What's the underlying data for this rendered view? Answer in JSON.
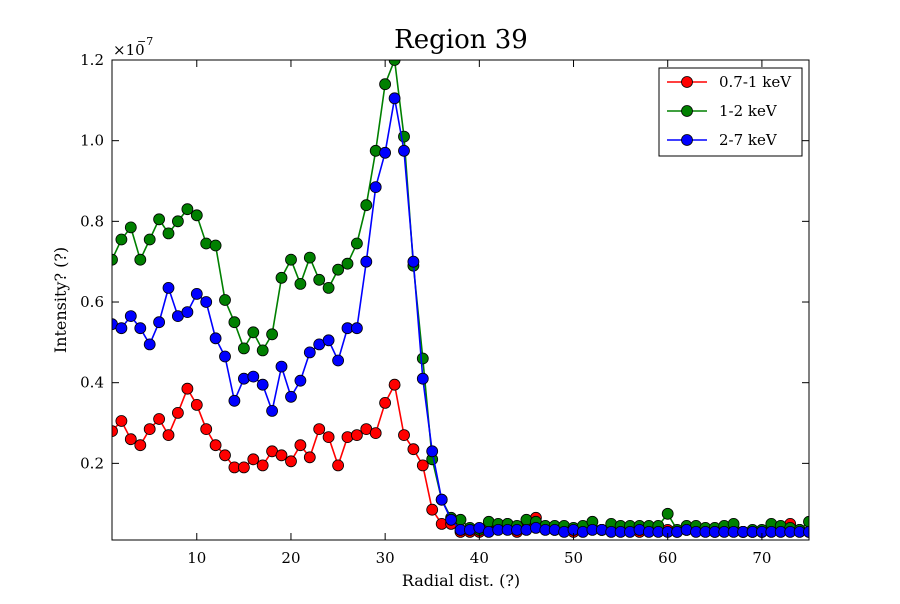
{
  "chart_data": {
    "type": "line",
    "title": "Region 39",
    "xlabel": "Radial dist. (?)",
    "ylabel": "Intensity? (?)",
    "y_scale_label": "×10",
    "y_scale_exponent": "−7",
    "xlim": [
      1,
      75
    ],
    "ylim": [
      0.01,
      1.2
    ],
    "xticks": [
      10,
      20,
      30,
      40,
      50,
      60,
      70
    ],
    "yticks": [
      0.2,
      0.4,
      0.6,
      0.8,
      1.0,
      1.2
    ],
    "ytick_labels": [
      "0.2",
      "0.4",
      "0.6",
      "0.8",
      "1.0",
      "1.2"
    ],
    "legend_position": "top-right",
    "x": [
      1,
      2,
      3,
      4,
      5,
      6,
      7,
      8,
      9,
      10,
      11,
      12,
      13,
      14,
      15,
      16,
      17,
      18,
      19,
      20,
      21,
      22,
      23,
      24,
      25,
      26,
      27,
      28,
      29,
      30,
      31,
      32,
      33,
      34,
      35,
      36,
      37,
      38,
      39,
      40,
      41,
      42,
      43,
      44,
      45,
      46,
      47,
      48,
      49,
      50,
      51,
      52,
      53,
      54,
      55,
      56,
      57,
      58,
      59,
      60,
      61,
      62,
      63,
      64,
      65,
      66,
      67,
      68,
      69,
      70,
      71,
      72,
      73,
      74,
      75
    ],
    "series": [
      {
        "name": "0.7-1 keV",
        "color": "#ff0000",
        "values": [
          0.28,
          0.305,
          0.26,
          0.245,
          0.285,
          0.31,
          0.27,
          0.325,
          0.385,
          0.345,
          0.285,
          0.245,
          0.22,
          0.19,
          0.19,
          0.21,
          0.195,
          0.23,
          0.22,
          0.205,
          0.245,
          0.215,
          0.285,
          0.265,
          0.195,
          0.265,
          0.27,
          0.285,
          0.275,
          0.35,
          0.395,
          0.27,
          0.235,
          0.195,
          0.085,
          0.05,
          0.05,
          0.03,
          0.03,
          0.03,
          0.035,
          0.04,
          0.05,
          0.03,
          0.04,
          0.065,
          0.04,
          0.035,
          0.035,
          0.03,
          0.035,
          0.04,
          0.035,
          0.035,
          0.035,
          0.035,
          0.03,
          0.035,
          0.04,
          0.035,
          0.03,
          0.035,
          0.04,
          0.035,
          0.03,
          0.035,
          0.04,
          0.03,
          0.03,
          0.03,
          0.035,
          0.035,
          0.05,
          0.035,
          0.03
        ]
      },
      {
        "name": "1-2 keV",
        "color": "#008000",
        "values": [
          0.705,
          0.755,
          0.785,
          0.705,
          0.755,
          0.805,
          0.77,
          0.8,
          0.83,
          0.815,
          0.745,
          0.74,
          0.605,
          0.55,
          0.485,
          0.525,
          0.48,
          0.52,
          0.66,
          0.705,
          0.645,
          0.71,
          0.655,
          0.635,
          0.68,
          0.695,
          0.745,
          0.84,
          0.975,
          1.14,
          1.2,
          1.01,
          0.69,
          0.46,
          0.21,
          0.11,
          0.065,
          0.06,
          0.04,
          0.035,
          0.055,
          0.05,
          0.05,
          0.045,
          0.06,
          0.055,
          0.045,
          0.045,
          0.045,
          0.04,
          0.045,
          0.055,
          0.035,
          0.05,
          0.045,
          0.045,
          0.045,
          0.045,
          0.045,
          0.075,
          0.035,
          0.045,
          0.045,
          0.04,
          0.04,
          0.045,
          0.05,
          0.03,
          0.035,
          0.035,
          0.05,
          0.045,
          0.04,
          0.035,
          0.055
        ]
      },
      {
        "name": "2-7 keV",
        "color": "#0000ff",
        "values": [
          0.545,
          0.535,
          0.565,
          0.535,
          0.495,
          0.55,
          0.635,
          0.565,
          0.575,
          0.62,
          0.6,
          0.51,
          0.465,
          0.355,
          0.41,
          0.415,
          0.395,
          0.33,
          0.44,
          0.365,
          0.405,
          0.475,
          0.495,
          0.505,
          0.455,
          0.535,
          0.535,
          0.7,
          0.885,
          0.97,
          1.105,
          0.975,
          0.7,
          0.41,
          0.23,
          0.11,
          0.06,
          0.035,
          0.035,
          0.04,
          0.03,
          0.035,
          0.035,
          0.035,
          0.035,
          0.04,
          0.035,
          0.035,
          0.03,
          0.035,
          0.03,
          0.035,
          0.035,
          0.03,
          0.03,
          0.03,
          0.035,
          0.03,
          0.03,
          0.03,
          0.03,
          0.035,
          0.03,
          0.03,
          0.03,
          0.03,
          0.03,
          0.03,
          0.03,
          0.03,
          0.03,
          0.03,
          0.03,
          0.03,
          0.03
        ]
      }
    ]
  }
}
